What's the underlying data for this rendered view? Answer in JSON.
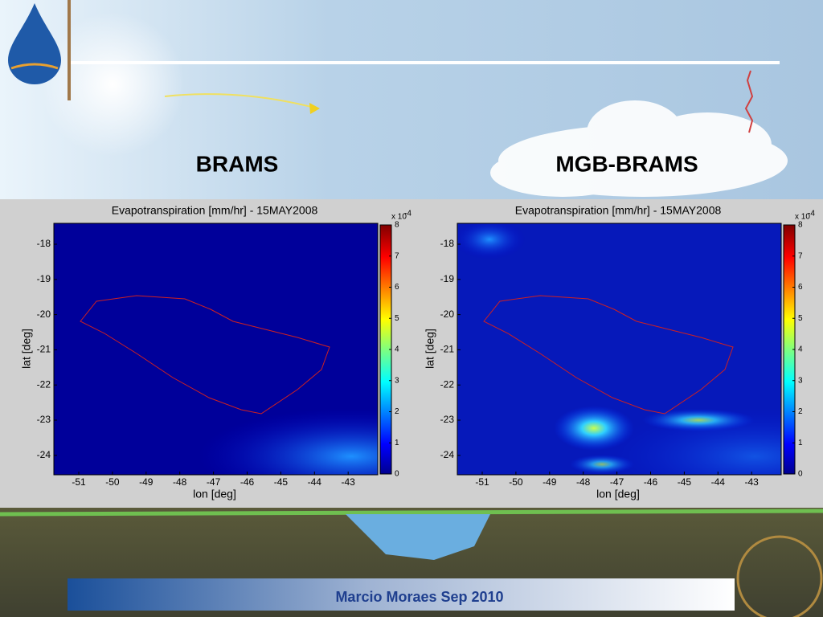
{
  "header": {
    "left_title": "BRAMS",
    "right_title": "MGB-BRAMS"
  },
  "panels": [
    {
      "title": "Evapotranspiration [mm/hr] - 15MAY2008",
      "xlabel": "lon [deg]",
      "ylabel": "lat [deg]",
      "xticks": [
        -51,
        -50,
        -49,
        -48,
        -47,
        -46,
        -45,
        -44,
        -43
      ],
      "yticks": [
        -18,
        -19,
        -20,
        -21,
        -22,
        -23,
        -24
      ],
      "colorbar_ticks": [
        8,
        7,
        6,
        5,
        4,
        3,
        2,
        1,
        0
      ],
      "colorbar_scale": "x 10",
      "colorbar_exponent": "-4"
    },
    {
      "title": "Evapotranspiration [mm/hr] - 15MAY2008",
      "xlabel": "lon [deg]",
      "ylabel": "lat [deg]",
      "xticks": [
        -51,
        -50,
        -49,
        -48,
        -47,
        -46,
        -45,
        -44,
        -43
      ],
      "yticks": [
        -18,
        -19,
        -20,
        -21,
        -22,
        -23,
        -24
      ],
      "colorbar_ticks": [
        8,
        7,
        6,
        5,
        4,
        3,
        2,
        1,
        0
      ],
      "colorbar_scale": "x 10",
      "colorbar_exponent": "-4"
    }
  ],
  "footer": "Marcio Moraes Sep 2010"
}
